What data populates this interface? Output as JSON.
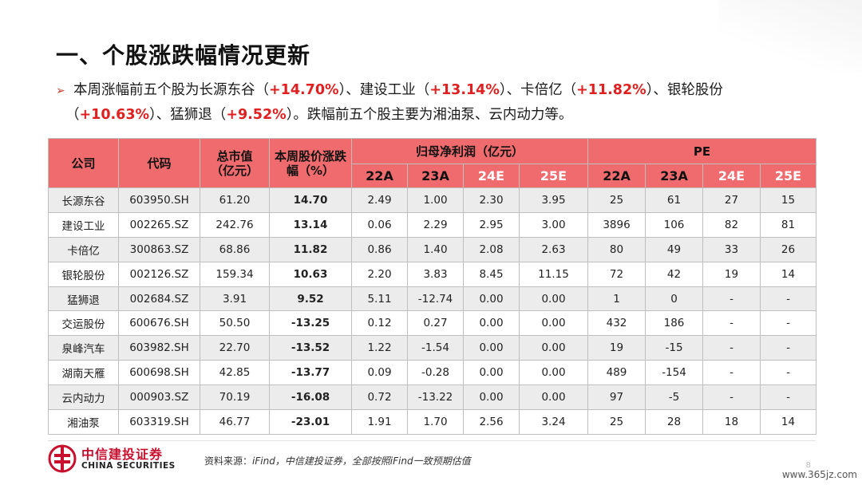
{
  "title": "一、个股涨跌幅情况更新",
  "summary": {
    "arrow": "➢",
    "segments_line1": [
      {
        "text": "本周涨幅前五个股为长源东谷（",
        "red": false
      },
      {
        "text": "+14.70%",
        "red": true
      },
      {
        "text": "）、建设工业（",
        "red": false
      },
      {
        "text": "+13.14%",
        "red": true
      },
      {
        "text": "）、卡倍亿（",
        "red": false
      },
      {
        "text": "+11.82%",
        "red": true
      },
      {
        "text": "）、银轮股份",
        "red": false
      }
    ],
    "segments_line2": [
      {
        "text": "（",
        "red": false
      },
      {
        "text": "+10.63%",
        "red": true
      },
      {
        "text": "）、猛狮退（",
        "red": false
      },
      {
        "text": "+9.52%",
        "red": true
      },
      {
        "text": "）。跌幅前五个股主要为湘油泵、云内动力等。",
        "red": false
      }
    ]
  },
  "table": {
    "headers": {
      "company": "公司",
      "code": "代码",
      "mcap": "总市值（亿元）",
      "weekly": "本周股价涨跌幅（%）",
      "profit_group": "归母净利润（亿元）",
      "pe_group": "PE",
      "years": [
        "22A",
        "23A",
        "24E",
        "25E"
      ]
    },
    "rows": [
      {
        "company": "长源东谷",
        "code": "603950.SH",
        "mcap": "61.20",
        "chg": "14.70",
        "dir": "up",
        "p22": "2.49",
        "p23": "1.00",
        "p24": "2.30",
        "p25": "3.95",
        "pe22": "25",
        "pe23": "61",
        "pe24": "27",
        "pe25": "15"
      },
      {
        "company": "建设工业",
        "code": "002265.SZ",
        "mcap": "242.76",
        "chg": "13.14",
        "dir": "up",
        "p22": "0.06",
        "p23": "2.29",
        "p24": "2.95",
        "p25": "3.00",
        "pe22": "3896",
        "pe23": "106",
        "pe24": "82",
        "pe25": "81"
      },
      {
        "company": "卡倍亿",
        "code": "300863.SZ",
        "mcap": "68.86",
        "chg": "11.82",
        "dir": "up",
        "p22": "0.86",
        "p23": "1.40",
        "p24": "2.08",
        "p25": "2.63",
        "pe22": "80",
        "pe23": "49",
        "pe24": "33",
        "pe25": "26"
      },
      {
        "company": "银轮股份",
        "code": "002126.SZ",
        "mcap": "159.34",
        "chg": "10.63",
        "dir": "up",
        "p22": "2.20",
        "p23": "3.83",
        "p24": "8.45",
        "p25": "11.15",
        "pe22": "72",
        "pe23": "42",
        "pe24": "19",
        "pe25": "14"
      },
      {
        "company": "猛狮退",
        "code": "002684.SZ",
        "mcap": "3.91",
        "chg": "9.52",
        "dir": "up",
        "p22": "5.11",
        "p23": "-12.74",
        "p24": "0.00",
        "p25": "0.00",
        "pe22": "1",
        "pe23": "0",
        "pe24": "-",
        "pe25": "-"
      },
      {
        "company": "交运股份",
        "code": "600676.SH",
        "mcap": "50.50",
        "chg": "-13.25",
        "dir": "down",
        "p22": "0.12",
        "p23": "0.27",
        "p24": "0.00",
        "p25": "0.00",
        "pe22": "432",
        "pe23": "186",
        "pe24": "-",
        "pe25": "-"
      },
      {
        "company": "泉峰汽车",
        "code": "603982.SH",
        "mcap": "22.70",
        "chg": "-13.52",
        "dir": "down",
        "p22": "1.22",
        "p23": "-1.54",
        "p24": "0.00",
        "p25": "0.00",
        "pe22": "19",
        "pe23": "-15",
        "pe24": "-",
        "pe25": "-"
      },
      {
        "company": "湖南天雁",
        "code": "600698.SH",
        "mcap": "42.85",
        "chg": "-13.77",
        "dir": "down",
        "p22": "0.09",
        "p23": "-0.28",
        "p24": "0.00",
        "p25": "0.00",
        "pe22": "489",
        "pe23": "-154",
        "pe24": "-",
        "pe25": "-"
      },
      {
        "company": "云内动力",
        "code": "000903.SZ",
        "mcap": "70.19",
        "chg": "-16.08",
        "dir": "down",
        "p22": "0.72",
        "p23": "-13.22",
        "p24": "0.00",
        "p25": "0.00",
        "pe22": "97",
        "pe23": "-5",
        "pe24": "-",
        "pe25": "-"
      },
      {
        "company": "湘油泵",
        "code": "603319.SH",
        "mcap": "46.77",
        "chg": "-23.01",
        "dir": "down",
        "p22": "1.91",
        "p23": "1.70",
        "p24": "2.56",
        "p25": "3.24",
        "pe22": "25",
        "pe23": "28",
        "pe24": "18",
        "pe25": "14"
      }
    ]
  },
  "footer": {
    "logo_cn": "中信建投证券",
    "logo_en": "CHINA SECURITIES",
    "source_label": "资料来源：",
    "source_text": "iFind，中信建投证券，全部按照iFind一致预期估值",
    "watermark": "www.365jz.com",
    "page_number": "8"
  },
  "colors": {
    "header_bg": "#f06b6e",
    "up": "#e02020",
    "down": "#1a9a3a",
    "brand": "#c8102e"
  }
}
